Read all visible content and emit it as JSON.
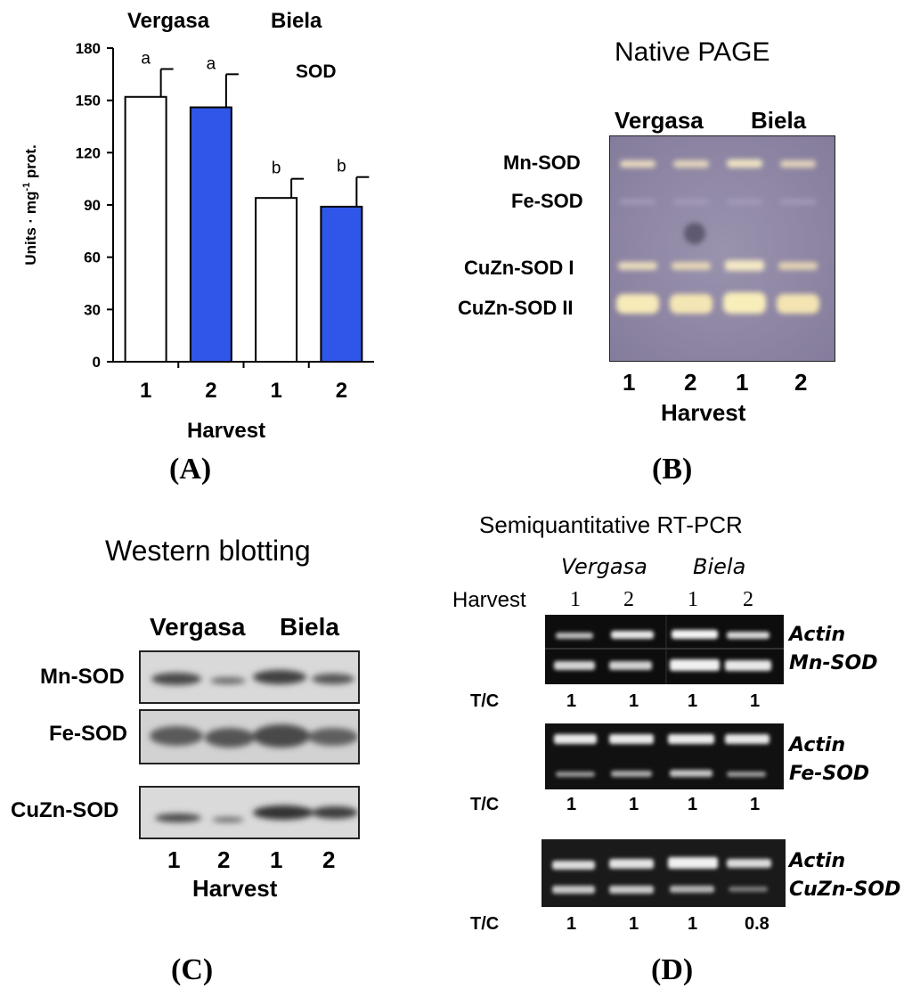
{
  "panel_a": {
    "label": "(A)",
    "chart_data": {
      "type": "bar",
      "groups": [
        "Vergasa",
        "Biela"
      ],
      "categories": [
        "1",
        "2",
        "1",
        "2"
      ],
      "values": [
        152,
        146,
        94,
        89
      ],
      "errors": [
        16,
        19,
        11,
        17
      ],
      "letters": [
        "a",
        "a",
        "b",
        "b"
      ],
      "bar_colors": [
        "#ffffff",
        "#2f56e8",
        "#ffffff",
        "#2f56e8"
      ],
      "annotation": "SOD",
      "xlabel": "Harvest",
      "ylabel_main": "Units · mg",
      "ylabel_sup": "-1",
      "ylabel_tail": " prot.",
      "ylim": [
        0,
        180
      ],
      "yticks": [
        "0",
        "30",
        "60",
        "90",
        "120",
        "150",
        "180"
      ],
      "grid": false
    }
  },
  "panel_b": {
    "label": "(B)",
    "title": "Native PAGE",
    "group_left": "Vergasa",
    "group_right": "Biela",
    "bands": [
      "Mn-SOD",
      "Fe-SOD",
      "CuZn-SOD I",
      "CuZn-SOD II"
    ],
    "lanes": [
      "1",
      "2",
      "1",
      "2"
    ],
    "xlabel": "Harvest",
    "gel_color": "#8f87a6"
  },
  "panel_c": {
    "label": "(C)",
    "title": "Western blotting",
    "group_left": "Vergasa",
    "group_right": "Biela",
    "rows": [
      "Mn-SOD",
      "Fe-SOD",
      "CuZn-SOD"
    ],
    "lanes": [
      "1",
      "2",
      "1",
      "2"
    ],
    "xlabel": "Harvest"
  },
  "panel_d": {
    "label": "(D)",
    "title": "Semiquantitative RT-PCR",
    "group_left": "Vergasa",
    "group_right": "Biela",
    "harvest_label": "Harvest",
    "lanes": [
      "1",
      "2",
      "1",
      "2"
    ],
    "tc_label": "T/C",
    "blocks": [
      {
        "top": "Actin",
        "bottom": "Mn-SOD",
        "tc": [
          "1",
          "1",
          "1",
          "1"
        ]
      },
      {
        "top": "Actin",
        "bottom": "Fe-SOD",
        "tc": [
          "1",
          "1",
          "1",
          "1"
        ]
      },
      {
        "top": "Actin",
        "bottom": "CuZn-SOD",
        "tc": [
          "1",
          "1",
          "1",
          "0.8"
        ]
      }
    ]
  }
}
